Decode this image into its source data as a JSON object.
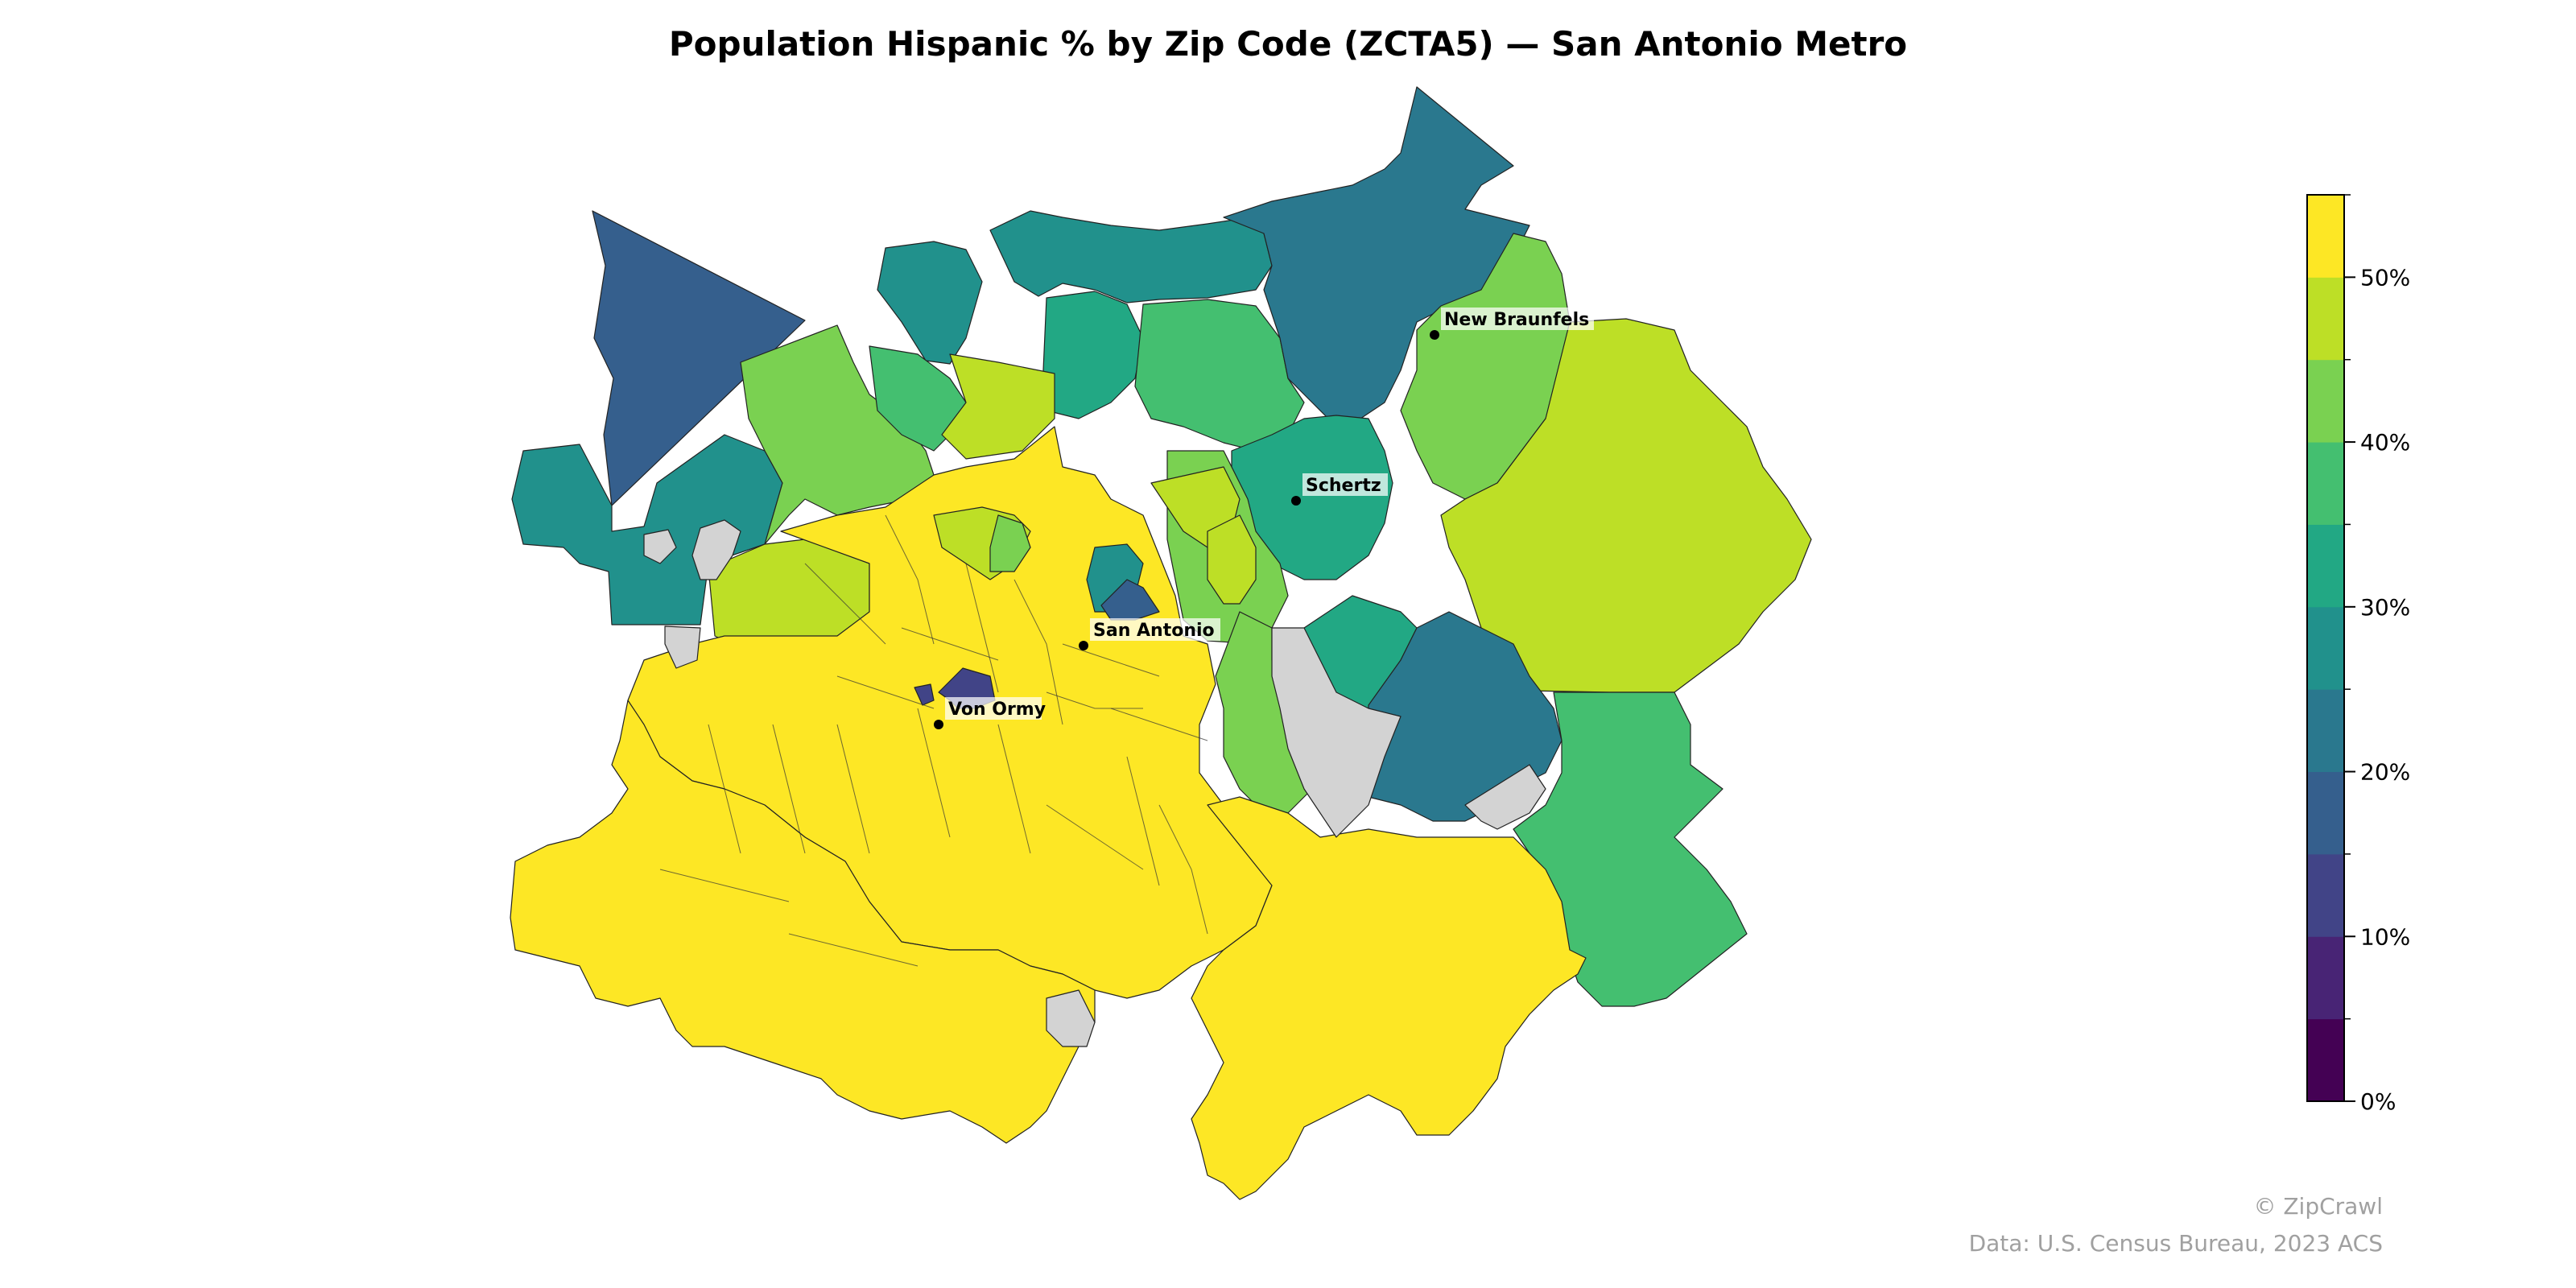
{
  "title": "Population Hispanic % by Zip Code (ZCTA5) — San Antonio Metro",
  "legend": {
    "type": "colorbar",
    "placement": "right",
    "range": [
      0,
      55
    ],
    "bin_step": 5,
    "colormap": "viridis",
    "ticks": [
      {
        "value": 0,
        "label": "0%"
      },
      {
        "value": 10,
        "label": "10%"
      },
      {
        "value": 20,
        "label": "20%"
      },
      {
        "value": 30,
        "label": "30%"
      },
      {
        "value": 40,
        "label": "40%"
      },
      {
        "value": 50,
        "label": "50%"
      }
    ],
    "bin_colors": [
      "#440154",
      "#482475",
      "#414487",
      "#355f8d",
      "#2a788e",
      "#21918c",
      "#22a884",
      "#44bf70",
      "#7ad151",
      "#bddf26",
      "#fde725"
    ]
  },
  "no_data_color": "#d3d3d3",
  "places": [
    {
      "name": "New Braunfels"
    },
    {
      "name": "Schertz"
    },
    {
      "name": "San Antonio"
    },
    {
      "name": "Von Ormy"
    }
  ],
  "footer": {
    "credit": "© ZipCrawl",
    "source": "Data: U.S. Census Bureau, 2023 ACS"
  }
}
